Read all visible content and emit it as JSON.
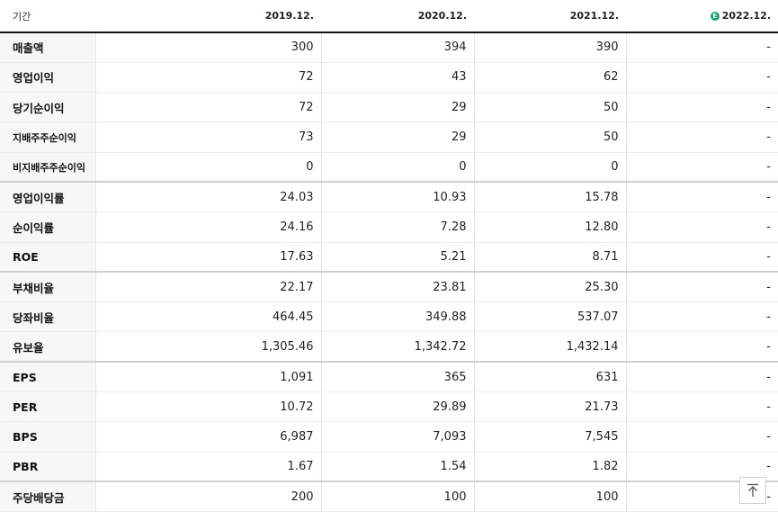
{
  "header": {
    "label_col": "기간",
    "periods": [
      "2019.12.",
      "2020.12.",
      "2021.12.",
      "2022.12."
    ],
    "estimate_badge": "E",
    "estimate_badge_color": "#1aa36f"
  },
  "rows": [
    {
      "label": "매출액",
      "values": [
        "300",
        "394",
        "390",
        "-"
      ]
    },
    {
      "label": "영업이익",
      "values": [
        "72",
        "43",
        "62",
        "-"
      ]
    },
    {
      "label": "당기순이익",
      "values": [
        "72",
        "29",
        "50",
        "-"
      ]
    },
    {
      "label": "지배주주순이익",
      "values": [
        "73",
        "29",
        "50",
        "-"
      ]
    },
    {
      "label": "비지배주주순이익",
      "values": [
        "0",
        "0",
        "0",
        "-"
      ]
    },
    {
      "label": "영업이익률",
      "values": [
        "24.03",
        "10.93",
        "15.78",
        "-"
      ]
    },
    {
      "label": "순이익률",
      "values": [
        "24.16",
        "7.28",
        "12.80",
        "-"
      ]
    },
    {
      "label": "ROE",
      "values": [
        "17.63",
        "5.21",
        "8.71",
        "-"
      ]
    },
    {
      "label": "부채비율",
      "values": [
        "22.17",
        "23.81",
        "25.30",
        "-"
      ]
    },
    {
      "label": "당좌비율",
      "values": [
        "464.45",
        "349.88",
        "537.07",
        "-"
      ]
    },
    {
      "label": "유보율",
      "values": [
        "1,305.46",
        "1,342.72",
        "1,432.14",
        "-"
      ]
    },
    {
      "label": "EPS",
      "values": [
        "1,091",
        "365",
        "631",
        "-"
      ]
    },
    {
      "label": "PER",
      "values": [
        "10.72",
        "29.89",
        "21.73",
        "-"
      ]
    },
    {
      "label": "BPS",
      "values": [
        "6,987",
        "7,093",
        "7,545",
        "-"
      ]
    },
    {
      "label": "PBR",
      "values": [
        "1.67",
        "1.54",
        "1.82",
        "-"
      ]
    },
    {
      "label": "주당배당금",
      "values": [
        "200",
        "100",
        "100",
        "-"
      ]
    }
  ],
  "scroll_top_icon": "arrow-up-to-top-icon"
}
